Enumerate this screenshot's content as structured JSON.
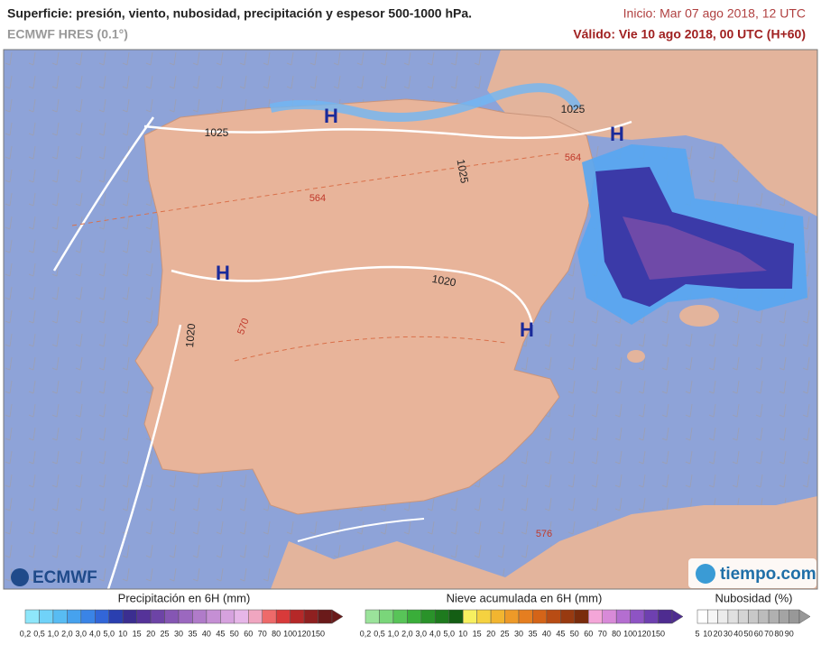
{
  "header": {
    "title": "Superficie: presión, viento, nubosidad, precipitación y espesor 500-1000 hPa.",
    "model": "ECMWF HRES (0.1°)",
    "init": "Inicio: Mar 07 ago 2018, 12 UTC",
    "valid": "Válido: Vie 10 ago 2018, 00 UTC (H+60)"
  },
  "map": {
    "isobars": [
      "1025",
      "1025",
      "1025",
      "1020",
      "1020"
    ],
    "thickness": [
      "564",
      "564",
      "570",
      "576"
    ],
    "highs": [
      "H",
      "H",
      "H",
      "H"
    ]
  },
  "logos": {
    "left": "ECMWF",
    "right": "tiempo.com"
  },
  "legends": [
    {
      "title": "Precipitación en 6H (mm)",
      "labels": [
        "0,2",
        "0,5",
        "1,0",
        "2,0",
        "3,0",
        "4,0",
        "5,0",
        "10",
        "15",
        "20",
        "25",
        "30",
        "35",
        "40",
        "45",
        "50",
        "60",
        "70",
        "80",
        "100",
        "120",
        "150"
      ]
    },
    {
      "title": "Nieve acumulada en 6H (mm)",
      "labels": [
        "0,2",
        "0,5",
        "1,0",
        "2,0",
        "3,0",
        "4,0",
        "5,0",
        "10",
        "15",
        "20",
        "25",
        "30",
        "35",
        "40",
        "45",
        "50",
        "60",
        "70",
        "80",
        "100",
        "120",
        "150"
      ]
    },
    {
      "title": "Nubosidad (%)",
      "labels": [
        "5",
        "10",
        "20",
        "30",
        "40",
        "50",
        "60",
        "70",
        "80",
        "90"
      ]
    }
  ]
}
